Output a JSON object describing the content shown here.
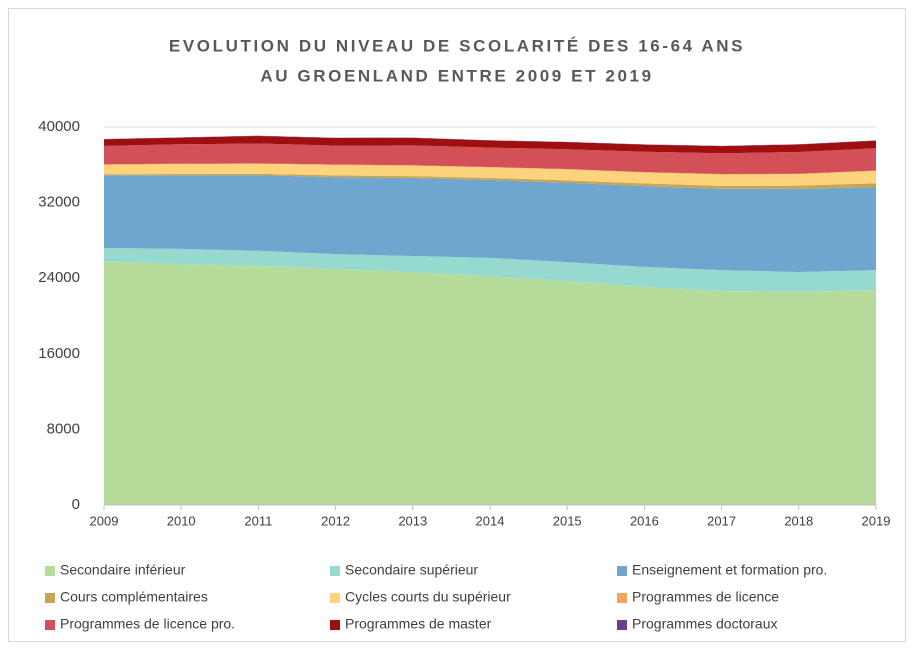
{
  "chart_data": {
    "type": "stacked_area",
    "title": [
      "EVOLUTION DU NIVEAU DE SCOLARITÉ DES 16-64 ANS",
      "AU GROENLAND ENTRE 2009 ET 2019"
    ],
    "categories": [
      "2009",
      "2010",
      "2011",
      "2012",
      "2013",
      "2014",
      "2015",
      "2016",
      "2017",
      "2018",
      "2019"
    ],
    "ylim": [
      0,
      40000
    ],
    "yticks": [
      0,
      8000,
      16000,
      24000,
      32000,
      40000
    ],
    "grid": true,
    "legend": "bottom",
    "series": [
      {
        "name": "Secondaire inférieur",
        "color": "#b5dc9a",
        "values": [
          25800,
          25500,
          25300,
          25000,
          24650,
          24200,
          23700,
          23100,
          22650,
          22550,
          22750
        ]
      },
      {
        "name": "Secondaire supérieur",
        "color": "#96d9cf",
        "values": [
          1400,
          1600,
          1600,
          1550,
          1700,
          1950,
          2000,
          2100,
          2200,
          2100,
          2100
        ]
      },
      {
        "name": "Enseignement et formation pro.",
        "color": "#6fa6d0",
        "values": [
          7700,
          7800,
          8000,
          8150,
          8250,
          8250,
          8400,
          8550,
          8600,
          8800,
          8800
        ]
      },
      {
        "name": "Cours complémentaires",
        "color": "#c9a553",
        "values": [
          100,
          120,
          150,
          180,
          200,
          220,
          250,
          280,
          320,
          350,
          400
        ]
      },
      {
        "name": "Cycles courts du supérieur",
        "color": "#fdd47c",
        "values": [
          1000,
          1050,
          1050,
          1100,
          1100,
          1100,
          1150,
          1150,
          1200,
          1200,
          1300
        ]
      },
      {
        "name": "Programmes de licence",
        "color": "#f4a35c",
        "values": [
          50,
          50,
          50,
          50,
          50,
          50,
          50,
          50,
          50,
          50,
          50
        ]
      },
      {
        "name": "Programmes de licence pro.",
        "color": "#d45058",
        "values": [
          1950,
          2050,
          2100,
          2000,
          2100,
          2050,
          2100,
          2150,
          2200,
          2300,
          2350
        ]
      },
      {
        "name": "Programmes de master",
        "color": "#a00f0f",
        "values": [
          700,
          700,
          800,
          800,
          800,
          750,
          750,
          750,
          750,
          800,
          800
        ]
      },
      {
        "name": "Programmes doctoraux",
        "color": "#6a3f8c",
        "values": [
          30,
          30,
          30,
          30,
          30,
          30,
          30,
          30,
          30,
          30,
          30
        ]
      }
    ]
  }
}
